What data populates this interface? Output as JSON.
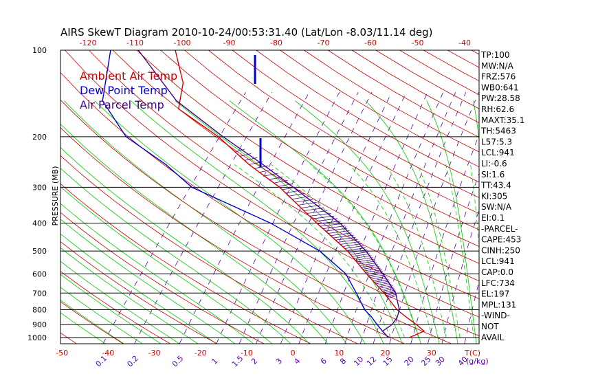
{
  "chart_data": {
    "type": "line",
    "title": "AIRS SkewT Diagram 2010-10-24/00:53:31.40 (Lat/Lon -8.03/11.14 deg)",
    "ylabel": "PRESSURE (MB)",
    "xlabel": "T(C)",
    "mixing_ratio_unit": "(g/kg)",
    "y_scale": "log",
    "ylim": [
      1050,
      100
    ],
    "pressure_ticks": [
      100,
      200,
      300,
      400,
      500,
      600,
      700,
      800,
      900,
      1000
    ],
    "isobars": [
      200,
      300,
      400,
      500,
      600,
      700,
      800,
      900,
      1000
    ],
    "bottom_temp_ticks": [
      -50,
      -40,
      -30,
      -20,
      -10,
      0,
      10,
      20,
      30
    ],
    "top_temp_ticks": [
      -120,
      -110,
      -100,
      -90,
      -80,
      -70,
      -60,
      -50,
      -40
    ],
    "mixing_ratio_labels": [
      "0.1",
      "0.2",
      "0.5",
      "1",
      "1.5",
      "2",
      "3",
      "4",
      "6",
      "8",
      "10",
      "12",
      "15",
      "20",
      "25",
      "30",
      "40"
    ],
    "series": [
      {
        "name": "Ambient Air Temp",
        "color": "#cc0000",
        "points": [
          [
            1000,
            24
          ],
          [
            950,
            26
          ],
          [
            900,
            23
          ],
          [
            850,
            19.5
          ],
          [
            800,
            16
          ],
          [
            700,
            10
          ],
          [
            600,
            2.5
          ],
          [
            500,
            -6
          ],
          [
            400,
            -18
          ],
          [
            300,
            -33
          ],
          [
            250,
            -44
          ],
          [
            200,
            -56
          ],
          [
            160,
            -70
          ],
          [
            130,
            -74
          ],
          [
            100,
            -82
          ]
        ]
      },
      {
        "name": "Dew Point Temp",
        "color": "#0000cc",
        "points": [
          [
            1000,
            19.5
          ],
          [
            950,
            17
          ],
          [
            900,
            14.5
          ],
          [
            850,
            12
          ],
          [
            800,
            9
          ],
          [
            700,
            4
          ],
          [
            600,
            -2
          ],
          [
            500,
            -12
          ],
          [
            400,
            -28
          ],
          [
            300,
            -52
          ],
          [
            250,
            -62
          ],
          [
            200,
            -76
          ],
          [
            150,
            -88
          ],
          [
            100,
            -96
          ]
        ]
      },
      {
        "name": "Air Parcel Temp",
        "color": "#440088",
        "points": [
          [
            1000,
            19.5
          ],
          [
            950,
            17
          ],
          [
            900,
            17.8
          ],
          [
            850,
            17.5
          ],
          [
            800,
            16.5
          ],
          [
            700,
            12.5
          ],
          [
            600,
            6
          ],
          [
            500,
            -2
          ],
          [
            400,
            -13
          ],
          [
            300,
            -30
          ],
          [
            250,
            -41
          ],
          [
            200,
            -55
          ],
          [
            150,
            -72
          ],
          [
            100,
            -90
          ]
        ]
      }
    ],
    "legend": [
      "Ambient Air Temp",
      "Dew Point Temp",
      "Air Parcel Temp"
    ],
    "legend_colors": [
      "#cc0000",
      "#0000cc",
      "#440088"
    ],
    "legend_position": "top-left",
    "indices": [
      "TP:100",
      "MW:N/A",
      "FRZ:576",
      "WB0:641",
      "PW:28.58",
      "RH:62.6",
      "MAXT:35.1",
      "TH:5463",
      "L57:5.3",
      "LCL:941",
      "LI:-0.6",
      "SI:1.6",
      "TT:43.4",
      "KI:305",
      "SW:N/A",
      "EI:0.1",
      "-PARCEL-",
      "CAPE:453",
      "CINH:250",
      "LCL:941",
      "CAP:0.0",
      "LFC:734",
      "EL:197",
      "MPL:131",
      "-WIND-",
      "NOT",
      "AVAIL"
    ],
    "colors": {
      "dry_adiabat": "#cc0000",
      "moist_adiabat": "#00cc00",
      "mixing_ratio": "#5500aa",
      "isotherm": "#000000",
      "wind_barb": "#0000cc",
      "frame": "#000000"
    }
  }
}
